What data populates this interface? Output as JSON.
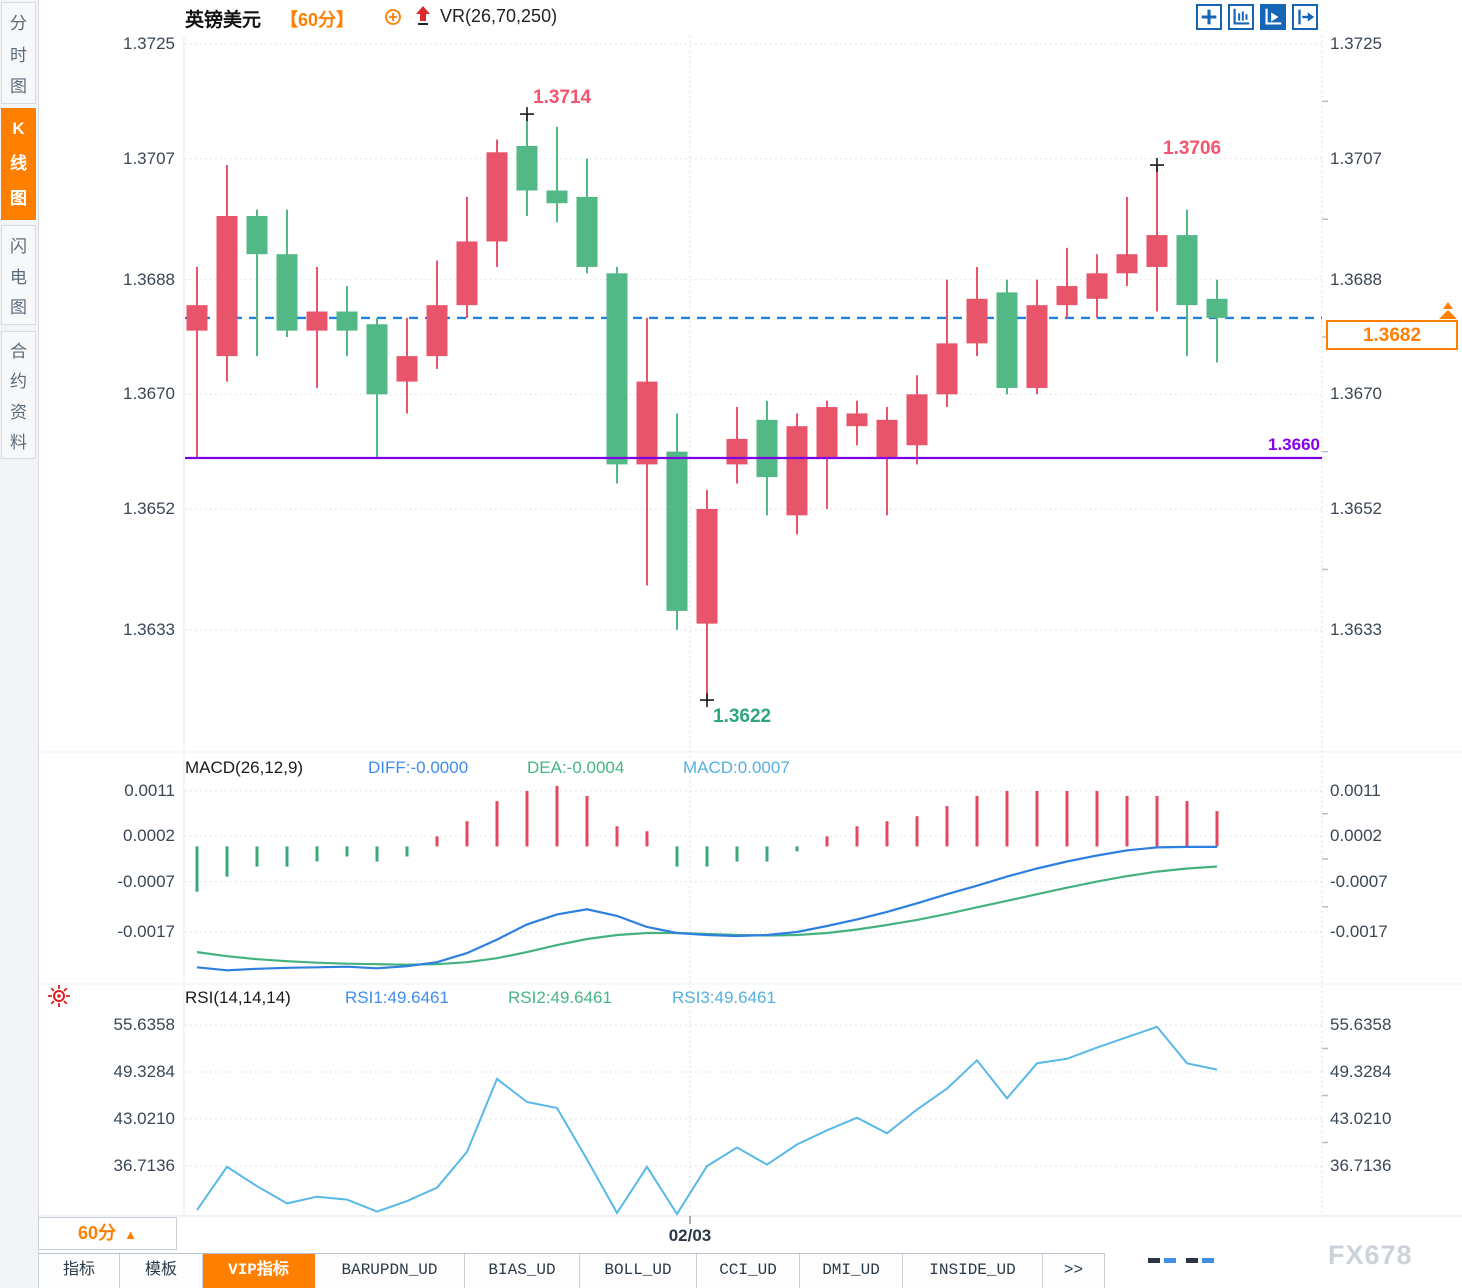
{
  "sidebar": {
    "tabs": [
      {
        "label": "分时图",
        "active": false
      },
      {
        "label": "K线图",
        "active": true
      },
      {
        "label": "闪电图",
        "active": false
      },
      {
        "label": "合约资料",
        "active": false
      }
    ]
  },
  "header": {
    "symbol": "英镑美元",
    "period": "【60分】",
    "indicator": "VR(26,70,250)"
  },
  "macd_header": {
    "title": "MACD(26,12,9)",
    "diff": "DIFF:-0.0000",
    "dea": "DEA:-0.0004",
    "macd": "MACD:0.0007"
  },
  "rsi_header": {
    "title": "RSI(14,14,14)",
    "rsi1": "RSI1:49.6461",
    "rsi2": "RSI2:49.6461",
    "rsi3": "RSI3:49.6461"
  },
  "bottom": {
    "period_button": "60分",
    "date_label": "02/03",
    "watermark": "FX678",
    "tabs": [
      {
        "label": "指标",
        "active": false
      },
      {
        "label": "模板",
        "active": false
      },
      {
        "label": "VIP指标",
        "active": true
      },
      {
        "label": "BARUPDN_UD",
        "active": false
      },
      {
        "label": "BIAS_UD",
        "active": false
      },
      {
        "label": "BOLL_UD",
        "active": false
      },
      {
        "label": "CCI_UD",
        "active": false
      },
      {
        "label": "DMI_UD",
        "active": false
      },
      {
        "label": "INSIDE_UD",
        "active": false
      },
      {
        "label": ">>",
        "active": false
      }
    ]
  },
  "chart_data": {
    "type": "candlestick",
    "title": "英镑美元 60分",
    "x_axis": {
      "tick_label": "02/03"
    },
    "colors": {
      "up": "#e8546a",
      "down": "#52b986",
      "current_price": "#ff8000",
      "current_price_line": "#1e7fe8",
      "support_line": "#7c00e2",
      "diff_line": "#2d7fe0",
      "dea_line": "#45b181",
      "rsi_line": "#58b8e8",
      "hist_up": "#e5485e",
      "hist_down": "#3aa879"
    },
    "panels": [
      {
        "name": "price",
        "y_ticks": [
          "1.3725",
          "1.3707",
          "1.3688",
          "1.3670",
          "1.3652",
          "1.3633"
        ],
        "overlay_lines": [
          {
            "label": "1.3682",
            "value": 1.3682,
            "style": "dashed",
            "role": "current-price"
          },
          {
            "label": "1.3660",
            "value": 1.366,
            "style": "solid",
            "role": "horizontal-line"
          }
        ],
        "markers": [
          {
            "index": 11,
            "value": 1.3714,
            "label": "1.3714",
            "placement": "above",
            "color": "#f5546e"
          },
          {
            "index": 32,
            "value": 1.3706,
            "label": "1.3706",
            "placement": "above",
            "color": "#f5546e"
          },
          {
            "index": 17,
            "value": 1.3622,
            "label": "1.3622",
            "placement": "below",
            "color": "#2ca87c"
          }
        ],
        "candles_ohlc": [
          [
            1.368,
            1.369,
            1.366,
            1.3684
          ],
          [
            1.3676,
            1.3706,
            1.3672,
            1.3698
          ],
          [
            1.3698,
            1.3699,
            1.3676,
            1.3692
          ],
          [
            1.3692,
            1.3699,
            1.3679,
            1.368
          ],
          [
            1.368,
            1.369,
            1.3671,
            1.3683
          ],
          [
            1.3683,
            1.3687,
            1.3676,
            1.368
          ],
          [
            1.3681,
            1.3682,
            1.366,
            1.367
          ],
          [
            1.3672,
            1.3682,
            1.3667,
            1.3676
          ],
          [
            1.3676,
            1.3691,
            1.3674,
            1.3684
          ],
          [
            1.3684,
            1.3701,
            1.3682,
            1.3694
          ],
          [
            1.3694,
            1.371,
            1.369,
            1.3708
          ],
          [
            1.3709,
            1.3714,
            1.3698,
            1.3702
          ],
          [
            1.3702,
            1.3712,
            1.3697,
            1.37
          ],
          [
            1.3701,
            1.3707,
            1.3689,
            1.369
          ],
          [
            1.3689,
            1.369,
            1.3656,
            1.3659
          ],
          [
            1.3659,
            1.3682,
            1.364,
            1.3672
          ],
          [
            1.3661,
            1.3667,
            1.3633,
            1.3636
          ],
          [
            1.3634,
            1.3655,
            1.3622,
            1.3652
          ],
          [
            1.3659,
            1.3668,
            1.3656,
            1.3663
          ],
          [
            1.3666,
            1.3669,
            1.3651,
            1.3657
          ],
          [
            1.3651,
            1.3667,
            1.3648,
            1.3665
          ],
          [
            1.366,
            1.3669,
            1.3652,
            1.3668
          ],
          [
            1.3665,
            1.3669,
            1.3662,
            1.3667
          ],
          [
            1.366,
            1.3668,
            1.3651,
            1.3666
          ],
          [
            1.3662,
            1.3673,
            1.3659,
            1.367
          ],
          [
            1.367,
            1.3688,
            1.3668,
            1.3678
          ],
          [
            1.3678,
            1.369,
            1.3676,
            1.3685
          ],
          [
            1.3686,
            1.3688,
            1.367,
            1.3671
          ],
          [
            1.3671,
            1.3688,
            1.367,
            1.3684
          ],
          [
            1.3684,
            1.3693,
            1.3682,
            1.3687
          ],
          [
            1.3685,
            1.3692,
            1.3682,
            1.3689
          ],
          [
            1.3689,
            1.3701,
            1.3687,
            1.3692
          ],
          [
            1.369,
            1.3706,
            1.3683,
            1.3695
          ],
          [
            1.3695,
            1.3699,
            1.3676,
            1.3684
          ],
          [
            1.3685,
            1.3688,
            1.3675,
            1.3682
          ]
        ]
      },
      {
        "name": "MACD",
        "y_ticks": [
          "0.0011",
          "0.0002",
          "-0.0007",
          "-0.0017"
        ],
        "histogram": [
          -0.0009,
          -0.0006,
          -0.0004,
          -0.0004,
          -0.0003,
          -0.0002,
          -0.0003,
          -0.0002,
          0.0002,
          0.0005,
          0.0009,
          0.0011,
          0.0012,
          0.001,
          0.0004,
          0.0003,
          -0.0004,
          -0.0004,
          -0.0003,
          -0.0003,
          -0.0001,
          0.0002,
          0.0004,
          0.0005,
          0.0006,
          0.0008,
          0.001,
          0.0011,
          0.0011,
          0.0011,
          0.0011,
          0.001,
          0.001,
          0.0009,
          0.0007
        ],
        "diff": [
          -0.0024,
          -0.00246,
          -0.00243,
          -0.00241,
          -0.0024,
          -0.00239,
          -0.00242,
          -0.00238,
          -0.0023,
          -0.00212,
          -0.00185,
          -0.00155,
          -0.00135,
          -0.00125,
          -0.00138,
          -0.0016,
          -0.00172,
          -0.00176,
          -0.00178,
          -0.00176,
          -0.0017,
          -0.00158,
          -0.00145,
          -0.0013,
          -0.00113,
          -0.00095,
          -0.00078,
          -0.0006,
          -0.00044,
          -0.0003,
          -0.00018,
          -8e-05,
          -2e-05,
          -1e-05,
          -1e-05
        ],
        "dea": [
          -0.0021,
          -0.00218,
          -0.00224,
          -0.00228,
          -0.00231,
          -0.00233,
          -0.00234,
          -0.00235,
          -0.00234,
          -0.0023,
          -0.00222,
          -0.0021,
          -0.00196,
          -0.00184,
          -0.00176,
          -0.00172,
          -0.00172,
          -0.00174,
          -0.00176,
          -0.00177,
          -0.00176,
          -0.00172,
          -0.00165,
          -0.00156,
          -0.00146,
          -0.00134,
          -0.00121,
          -0.00108,
          -0.00095,
          -0.00082,
          -0.0007,
          -0.00059,
          -0.0005,
          -0.00044,
          -0.0004
        ]
      },
      {
        "name": "RSI",
        "y_ticks": [
          "55.6358",
          "49.3284",
          "43.0210",
          "36.7136"
        ],
        "rsi": [
          30.8,
          36.6,
          34.0,
          31.7,
          32.6,
          32.2,
          30.6,
          32.0,
          33.8,
          38.6,
          48.4,
          45.3,
          44.5,
          37.6,
          30.4,
          36.6,
          29.9,
          36.7,
          39.2,
          36.9,
          39.6,
          41.5,
          43.2,
          41.1,
          44.3,
          47.1,
          50.9,
          45.8,
          50.5,
          51.1,
          52.6,
          54.0,
          55.4,
          50.5,
          49.6461
        ]
      }
    ]
  }
}
